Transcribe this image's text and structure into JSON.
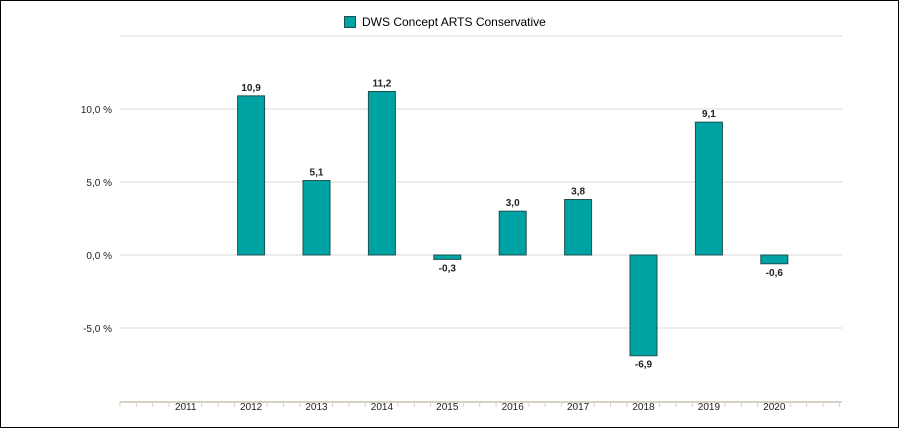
{
  "chart_data": {
    "type": "bar",
    "categories": [
      "2011",
      "2012",
      "2013",
      "2014",
      "2015",
      "2016",
      "2017",
      "2018",
      "2019",
      "2020"
    ],
    "series": [
      {
        "name": "DWS Concept ARTS Conservative",
        "values": [
          null,
          10.9,
          5.1,
          11.2,
          -0.3,
          3.0,
          3.8,
          -6.9,
          9.1,
          -0.6
        ],
        "labels": [
          "",
          "10,9",
          "5,1",
          "11,2",
          "-0,3",
          "3,0",
          "3,8",
          "-6,9",
          "9,1",
          "-0,6"
        ]
      }
    ],
    "yticks": [
      10,
      5,
      0,
      -5
    ],
    "ytick_labels": [
      "10,0 %",
      "5,0 %",
      "0,0 %",
      "-5,0 %"
    ],
    "ylim": [
      -9.5,
      15
    ],
    "grid": true,
    "legend": "top-center",
    "colors": {
      "bar": "#00a3a3",
      "bar_border": "#1d4f4f",
      "grid": "#d9d9d9",
      "axis": "#d8d2c6"
    }
  }
}
